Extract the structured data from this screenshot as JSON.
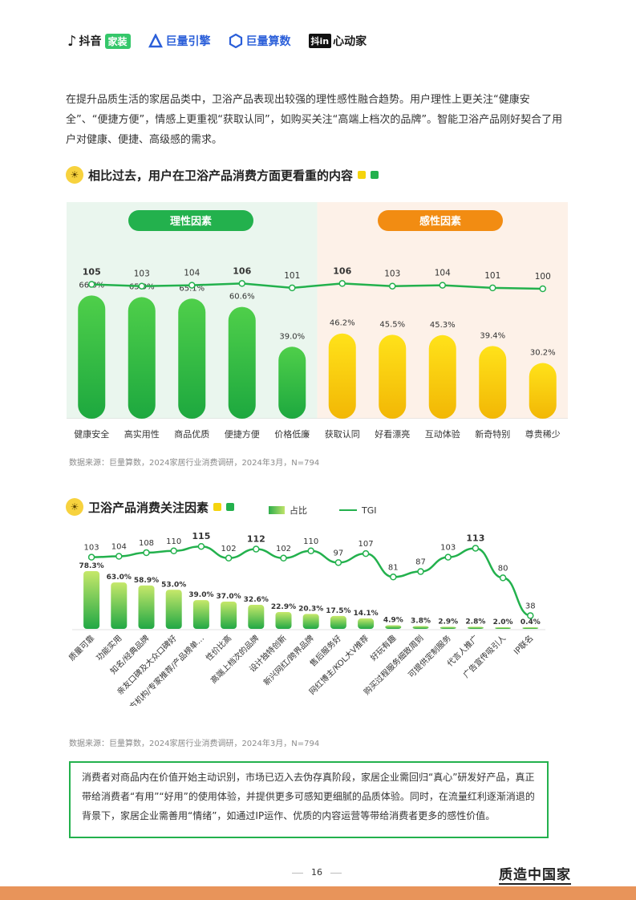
{
  "logos": {
    "douyin": "抖音",
    "douyin_tag": "家装",
    "juliang_engine": "巨量引擎",
    "juliang_suanshu": "巨量算数",
    "douyin_box": "抖in",
    "xindongjia": "心动家"
  },
  "intro": "在提升品质生活的家居品类中，卫浴产品表现出较强的理性感性融合趋势。用户理性上更关注“健康安全”、“便捷方便”，情感上更重视“获取认同”，如购买关注“高端上档次的品牌”。智能卫浴产品刚好契合了用户对健康、便捷、高级感的需求。",
  "section1": {
    "title": "相比过去，用户在卫浴产品消费方面更看重的内容",
    "source": "数据来源：巨量算数，2024家居行业消费调研，2024年3月，N=794"
  },
  "section2": {
    "title": "卫浴产品消费关注因素",
    "legend_bar": "占比",
    "legend_line": "TGI",
    "source": "数据来源：巨量算数，2024家居行业消费调研，2024年3月，N=794"
  },
  "quote": "消费者对商品内在价值开始主动识别，市场已迈入去伪存真阶段，家居企业需回归“真心”研发好产品，真正带给消费者“有用”“好用”的使用体验，并提供更多可感知更细腻的品质体验。同时，在流量红利逐渐消退的背景下，家居企业需善用“情绪”，如通过IP运作、优质的内容运营等带给消费者更多的感性价值。",
  "footer": {
    "page": "16",
    "brand": "质造中国家"
  },
  "colors": {
    "green": "#23b14d",
    "orange": "#f28c12",
    "yellow": "#f5d40e",
    "left_bg": "#eaf6ee",
    "right_bg": "#fdf1e8"
  },
  "chart_data": [
    {
      "type": "bar",
      "groups": [
        {
          "name": "理性因素",
          "categories": [
            "健康安全",
            "高实用性",
            "商品优质",
            "便捷方便",
            "价格低廉"
          ]
        },
        {
          "name": "感性因素",
          "categories": [
            "获取认同",
            "好看漂亮",
            "互动体验",
            "新奇特别",
            "尊贵稀少"
          ]
        }
      ],
      "categories": [
        "健康安全",
        "高实用性",
        "商品优质",
        "便捷方便",
        "价格低廉",
        "获取认同",
        "好看漂亮",
        "互动体验",
        "新奇特别",
        "尊贵稀少"
      ],
      "series": [
        {
          "values": [
            66.8,
            65.9,
            65.1,
            60.6,
            39.0,
            46.2,
            45.5,
            45.3,
            39.4,
            30.2
          ],
          "labels": [
            "66.8%",
            "65.9%",
            "65.1%",
            "60.6%",
            "39.0%",
            "46.2%",
            "45.5%",
            "45.3%",
            "39.4%",
            "30.2%"
          ]
        },
        {
          "type": "line",
          "values": [
            105,
            103,
            104,
            106,
            101,
            106,
            103,
            104,
            101,
            100
          ]
        }
      ],
      "bold_line_labels": [
        105,
        106,
        106
      ]
    },
    {
      "type": "bar",
      "categories": [
        "质量可靠",
        "功能实用",
        "知名/经典品牌",
        "亲友口碑及大众口碑好",
        "官方机构/专家推荐/产品榜单…",
        "性价比高",
        "高端上档次的品牌",
        "设计独特创新",
        "新兴网红/跨界品牌",
        "售后服务好",
        "网红博主/KOL大V推荐",
        "好玩有趣",
        "购买过程服务细致周到",
        "可提供定制服务",
        "代言人推广",
        "广告宣传吸引人",
        "IP联名"
      ],
      "series": [
        {
          "name": "占比",
          "values": [
            78.3,
            63.0,
            58.9,
            53.0,
            39.0,
            37.0,
            32.6,
            22.9,
            20.3,
            17.5,
            14.1,
            4.9,
            3.8,
            2.9,
            2.8,
            2.0,
            0.4
          ],
          "labels": [
            "78.3%",
            "63.0%",
            "58.9%",
            "53.0%",
            "39.0%",
            "37.0%",
            "32.6%",
            "22.9%",
            "20.3%",
            "17.5%",
            "14.1%",
            "4.9%",
            "3.8%",
            "2.9%",
            "2.8%",
            "2.0%",
            "0.4%"
          ]
        },
        {
          "name": "TGI",
          "type": "line",
          "values": [
            103,
            104,
            108,
            110,
            115,
            102,
            112,
            102,
            110,
            97,
            107,
            81,
            87,
            103,
            113,
            80,
            38
          ]
        }
      ],
      "bold_line_labels": [
        115,
        112,
        113
      ]
    }
  ]
}
